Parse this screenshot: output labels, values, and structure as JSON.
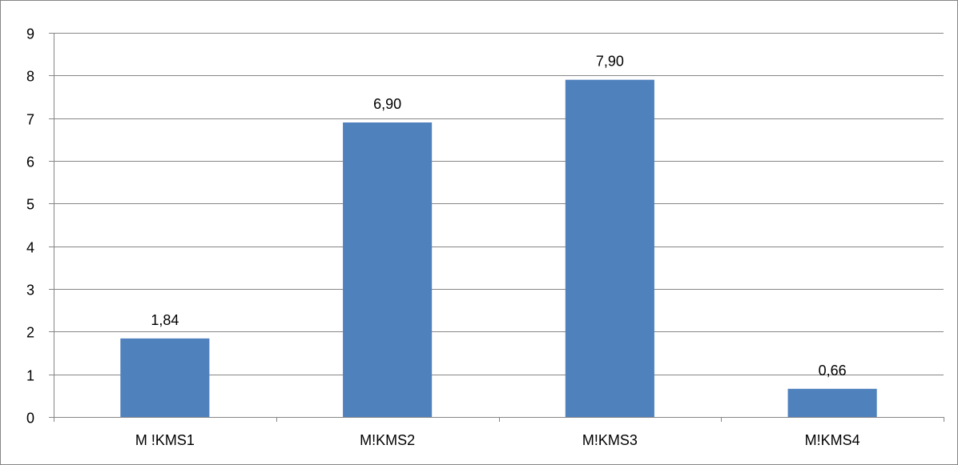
{
  "chart_data": {
    "type": "bar",
    "title": "",
    "xlabel": "",
    "ylabel": "",
    "categories": [
      "M !KMS1",
      "M!KMS2",
      "M!KMS3",
      "M!KMS4"
    ],
    "values": [
      1.84,
      6.9,
      7.9,
      0.66
    ],
    "data_labels": [
      "1,84",
      "6,90",
      "7,90",
      "0,66"
    ],
    "ylim": [
      0,
      9
    ],
    "yticks": [
      0,
      1,
      2,
      3,
      4,
      5,
      6,
      7,
      8,
      9
    ],
    "ytick_labels": [
      "0",
      "1",
      "2",
      "3",
      "4",
      "5",
      "6",
      "7",
      "8",
      "9"
    ],
    "grid": true,
    "legend": "none",
    "colors": {
      "bar": "#4f81bd",
      "gridline": "#868686",
      "axis": "#868686",
      "text": "#000000"
    }
  }
}
